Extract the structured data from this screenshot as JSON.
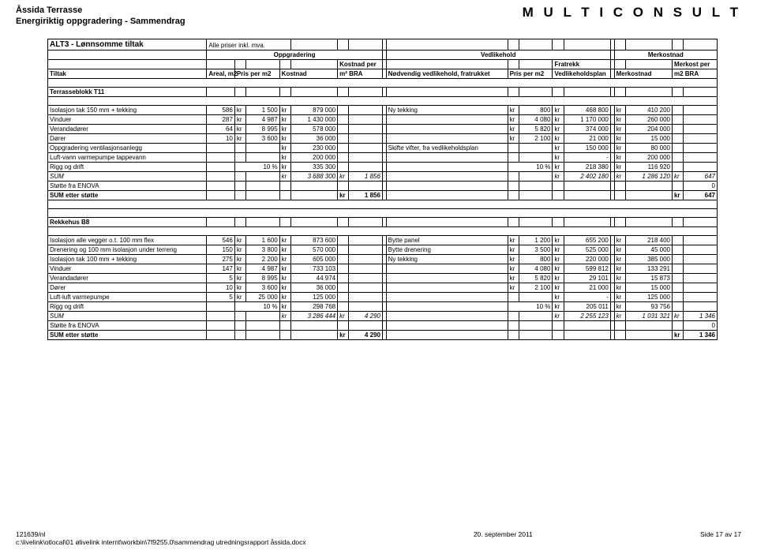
{
  "header": {
    "title_left_1": "Åssida Terrasse",
    "title_left_2": "Energiriktig oppgradering - Sammendrag",
    "title_right": "M U L T I C O N S U L T"
  },
  "table_title": "ALT3 - Lønnsomme tiltak",
  "table_title_note": "Alle priser inkl. mva.",
  "group_headers": {
    "oppgradering": "Oppgradering",
    "vedlikehold": "Vedlikehold",
    "merkostnad": "Merkostnad"
  },
  "col_headers": {
    "tiltak": "Tiltak",
    "areal": "Areal, m2",
    "pris_per_m2": "Pris per m2",
    "kostnad": "Kostnad",
    "kostnad_per_m2_1": "Kostnad per",
    "kostnad_per_m2_2": "m² BRA",
    "nodvendig": "Nødvendig vedlikehold, fratrukket",
    "fratrekk_1": "Fratrekk",
    "pris_per_m2_v": "Pris per m2",
    "vedplan": "Vedlikeholdsplan",
    "merkostnad": "Merkostnad",
    "merkost_per_1": "Merkost per",
    "merkost_per_2": "m2 BRA"
  },
  "section1": "Terrasseblokk T11",
  "rows1": [
    {
      "tiltak": "Isolasjon tak 150 mm + tekking",
      "areal": "586",
      "p": "1 500",
      "k": "879 000",
      "ved": "Ny tekking",
      "vp": "800",
      "vk": "468 800",
      "mk": "410 200"
    },
    {
      "tiltak": "Vinduer",
      "areal": "287",
      "p": "4 987",
      "k": "1 430 000",
      "ved": "",
      "vp": "4 080",
      "vk": "1 170 000",
      "mk": "260 000"
    },
    {
      "tiltak": "Verandadører",
      "areal": "64",
      "p": "8 995",
      "k": "578 000",
      "ved": "",
      "vp": "5 820",
      "vk": "374 000",
      "mk": "204 000"
    },
    {
      "tiltak": "Dører",
      "areal": "10",
      "p": "3 600",
      "k": "36 000",
      "ved": "",
      "vp": "2 100",
      "vk": "21 000",
      "mk": "15 000"
    },
    {
      "tiltak": "Oppgradering ventilasjonsanlegg",
      "areal": "",
      "p": "",
      "k": "230 000",
      "ved": "Skifte vifter, fra vedlikeholdsplan",
      "vp": "",
      "vk": "150 000",
      "mk": "80 000"
    },
    {
      "tiltak": "Luft-vann varmepumpe tappevann",
      "areal": "",
      "p": "",
      "k": "200 000",
      "ved": "",
      "vp": "",
      "vk": "-",
      "mk": "200 000"
    },
    {
      "tiltak": "Rigg og drift",
      "areal": "",
      "p": "10 %",
      "k": "335 300",
      "ved": "",
      "vp": "10 %",
      "vk": "218 380",
      "mk": "116 920"
    }
  ],
  "sum1": {
    "label": "SUM",
    "k": "3 688 300",
    "kpm": "1 856",
    "vk": "2 402 180",
    "mk": "1 286 120",
    "mkpm": "647"
  },
  "enova1": {
    "label": "Støtte fra ENOVA",
    "v": "0"
  },
  "etter1": {
    "label": "SUM etter støtte",
    "kpm": "1 856",
    "mkpm": "647"
  },
  "section2": "Rekkehus B8",
  "rows2": [
    {
      "tiltak": "Isolasjon alle vegger o.t. 100 mm flex",
      "areal": "546",
      "p": "1 600",
      "k": "873 600",
      "ved": "Bytte panel",
      "vp": "1 200",
      "vk": "655 200",
      "mk": "218 400"
    },
    {
      "tiltak": "Drenering og 100 mm isolasjon under terreng",
      "areal": "150",
      "p": "3 800",
      "k": "570 000",
      "ved": "Bytte drenering",
      "vp": "3 500",
      "vk": "525 000",
      "mk": "45 000"
    },
    {
      "tiltak": "Isolasjon tak 100 mm + tekking",
      "areal": "275",
      "p": "2 200",
      "k": "605 000",
      "ved": "Ny tekking",
      "vp": "800",
      "vk": "220 000",
      "mk": "385 000"
    },
    {
      "tiltak": "Vinduer",
      "areal": "147",
      "p": "4 987",
      "k": "733 103",
      "ved": "",
      "vp": "4 080",
      "vk": "599 812",
      "mk": "133 291"
    },
    {
      "tiltak": "Verandadører",
      "areal": "5",
      "p": "8 995",
      "k": "44 974",
      "ved": "",
      "vp": "5 820",
      "vk": "29 101",
      "mk": "15 873"
    },
    {
      "tiltak": "Dører",
      "areal": "10",
      "p": "3 600",
      "k": "36 000",
      "ved": "",
      "vp": "2 100",
      "vk": "21 000",
      "mk": "15 000"
    },
    {
      "tiltak": "Luft-luft varmepumpe",
      "areal": "5",
      "p": "25 000",
      "k": "125 000",
      "ved": "",
      "vp": "",
      "vk": "-",
      "mk": "125 000"
    },
    {
      "tiltak": "Rigg og drift",
      "areal": "",
      "p": "10 %",
      "k": "298 768",
      "ved": "",
      "vp": "10 %",
      "vk": "205 011",
      "mk": "93 756"
    }
  ],
  "sum2": {
    "label": "SUM",
    "k": "3 286 444",
    "kpm": "4 290",
    "vk": "2 255 123",
    "mk": "1 031 321",
    "mkpm": "1 346"
  },
  "enova2": {
    "label": "Støtte fra ENOVA",
    "v": "0"
  },
  "etter2": {
    "label": "SUM etter støtte",
    "kpm": "4 290",
    "mkpm": "1 346"
  },
  "kr": "kr",
  "footer": {
    "left1": "121639/nl",
    "left2": "c:\\livelink\\otlocal\\01 ølivelink internt\\workbin\\7f9255.0\\sammendrag utredningsrapport åssida.docx",
    "center": "20. september 2011",
    "right": "Side 17 av 17"
  }
}
